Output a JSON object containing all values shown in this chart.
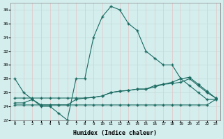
{
  "title": "",
  "xlabel": "Humidex (Indice chaleur)",
  "ylabel": "",
  "background_color": "#d4eeee",
  "grid_color_h": "#c4dede",
  "grid_color_v": "#e0cccc",
  "line_color": "#1a6a60",
  "xlim": [
    -0.5,
    23.5
  ],
  "ylim": [
    22,
    39
  ],
  "xticks": [
    0,
    1,
    2,
    3,
    4,
    5,
    6,
    7,
    8,
    9,
    10,
    11,
    12,
    13,
    14,
    15,
    16,
    17,
    18,
    19,
    20,
    21,
    22,
    23
  ],
  "yticks": [
    22,
    24,
    26,
    28,
    30,
    32,
    34,
    36,
    38
  ],
  "series1_x": [
    0,
    1,
    2,
    3,
    4,
    5,
    6,
    7,
    8,
    9,
    10,
    11,
    12,
    13,
    14,
    15,
    16,
    17,
    18,
    19,
    20,
    21,
    22,
    23
  ],
  "series1_y": [
    28,
    26,
    25,
    24,
    24,
    23,
    22,
    28,
    28,
    34,
    37,
    38.5,
    38,
    36,
    35,
    32,
    31,
    30,
    30,
    28,
    27,
    26,
    25,
    25
  ],
  "series2_x": [
    0,
    1,
    2,
    3,
    4,
    5,
    6,
    7,
    8,
    9,
    10,
    11,
    12,
    13,
    14,
    15,
    16,
    17,
    18,
    19,
    20,
    21,
    22,
    23
  ],
  "series2_y": [
    24.5,
    24.5,
    25,
    24.2,
    24.2,
    24.2,
    24.2,
    25,
    25.2,
    25.3,
    25.5,
    26,
    26.2,
    26.3,
    26.5,
    26.5,
    27,
    27.2,
    27.3,
    27.5,
    28,
    27,
    26,
    25.2
  ],
  "series3_x": [
    0,
    1,
    2,
    3,
    4,
    5,
    6,
    7,
    8,
    9,
    10,
    11,
    12,
    13,
    14,
    15,
    16,
    17,
    18,
    19,
    20,
    21,
    22,
    23
  ],
  "series3_y": [
    24.2,
    24.2,
    24.2,
    24.2,
    24.2,
    24.2,
    24.2,
    24.2,
    24.2,
    24.2,
    24.2,
    24.2,
    24.2,
    24.2,
    24.2,
    24.2,
    24.2,
    24.2,
    24.2,
    24.2,
    24.2,
    24.2,
    24.2,
    25
  ],
  "series4_x": [
    0,
    1,
    2,
    3,
    4,
    5,
    6,
    7,
    8,
    9,
    10,
    11,
    12,
    13,
    14,
    15,
    16,
    17,
    18,
    19,
    20,
    21,
    22,
    23
  ],
  "series4_y": [
    25.2,
    25.2,
    25.2,
    25.2,
    25.2,
    25.2,
    25.2,
    25.2,
    25.2,
    25.3,
    25.5,
    26,
    26.2,
    26.3,
    26.5,
    26.5,
    26.8,
    27.2,
    27.5,
    28,
    28.2,
    27.2,
    26.2,
    25.2
  ]
}
